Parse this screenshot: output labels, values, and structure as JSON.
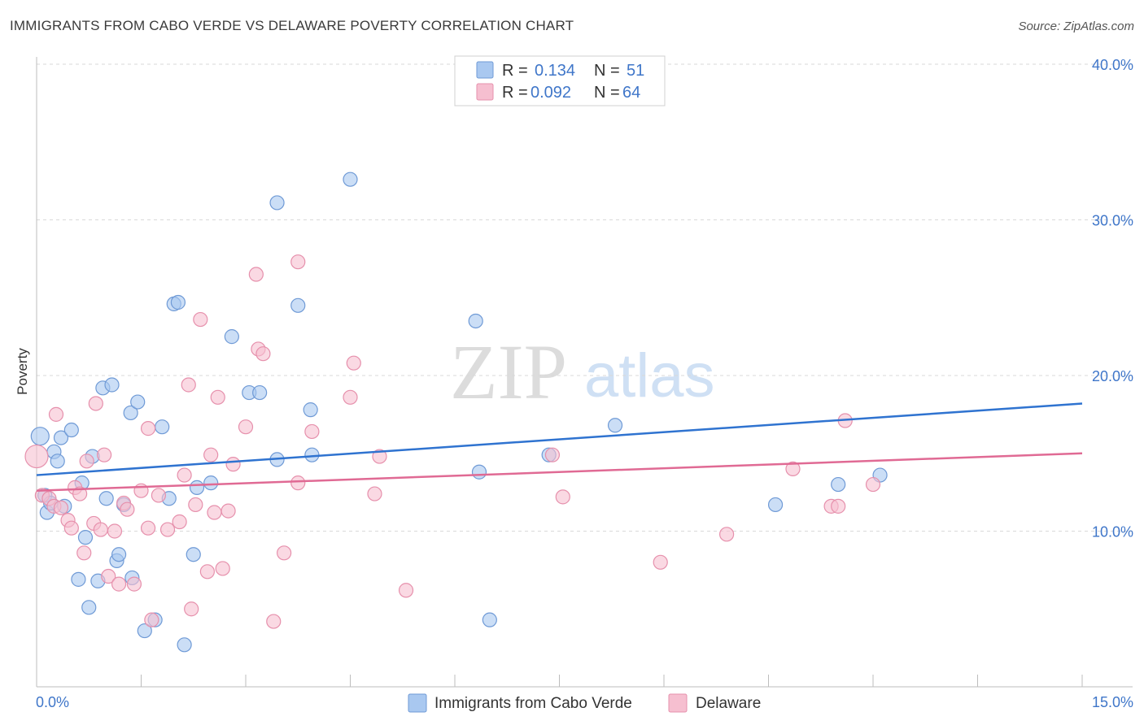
{
  "header": {
    "title": "IMMIGRANTS FROM CABO VERDE VS DELAWARE POVERTY CORRELATION CHART",
    "source": "Source: ZipAtlas.com"
  },
  "watermark": {
    "zip": "ZIP",
    "atlas": "atlas"
  },
  "colors": {
    "blue_fill": "#a9c8f0",
    "blue_stroke": "#6f9ad6",
    "blue_line": "#2f73d0",
    "pink_fill": "#f6bfd0",
    "pink_stroke": "#e690ac",
    "pink_line": "#e06a94",
    "grid": "#d9d9d9",
    "axis_text": "#3f76c9"
  },
  "chart_data": {
    "type": "scatter",
    "title": "IMMIGRANTS FROM CABO VERDE VS DELAWARE POVERTY CORRELATION CHART",
    "xlabel": "",
    "ylabel": "Poverty",
    "xlim": [
      0,
      15
    ],
    "ylim": [
      0,
      40
    ],
    "x_tick_labels": [
      {
        "value": 0,
        "label": "0.0%"
      },
      {
        "value": 15,
        "label": "15.0%"
      }
    ],
    "y_tick_labels": [
      {
        "value": 10,
        "label": "10.0%"
      },
      {
        "value": 20,
        "label": "20.0%"
      },
      {
        "value": 30,
        "label": "30.0%"
      },
      {
        "value": 40,
        "label": "40.0%"
      }
    ],
    "legend": [
      {
        "r_label": "R =",
        "r_value": "0.134",
        "n_label": "N =",
        "n_value": "51"
      },
      {
        "r_label": "R =",
        "r_value": "0.092",
        "n_label": "N =",
        "n_value": "64"
      }
    ],
    "series": [
      {
        "name": "Immigrants from Cabo Verde",
        "color": "#a9c8f0",
        "trend": [
          [
            0,
            13.6
          ],
          [
            15,
            18.2
          ]
        ],
        "points": [
          [
            0.05,
            16.1
          ],
          [
            0.12,
            12.3
          ],
          [
            0.15,
            11.2
          ],
          [
            0.2,
            11.8
          ],
          [
            0.25,
            15.1
          ],
          [
            0.3,
            14.5
          ],
          [
            0.35,
            16.0
          ],
          [
            0.4,
            11.6
          ],
          [
            0.5,
            16.5
          ],
          [
            0.6,
            6.9
          ],
          [
            0.65,
            13.1
          ],
          [
            0.7,
            9.6
          ],
          [
            0.75,
            5.1
          ],
          [
            0.8,
            14.8
          ],
          [
            0.88,
            6.8
          ],
          [
            0.95,
            19.2
          ],
          [
            1.0,
            12.1
          ],
          [
            1.08,
            19.4
          ],
          [
            1.15,
            8.1
          ],
          [
            1.18,
            8.5
          ],
          [
            1.25,
            11.7
          ],
          [
            1.35,
            17.6
          ],
          [
            1.37,
            7.0
          ],
          [
            1.45,
            18.3
          ],
          [
            1.55,
            3.6
          ],
          [
            1.7,
            4.3
          ],
          [
            1.8,
            16.7
          ],
          [
            1.9,
            12.1
          ],
          [
            1.97,
            24.6
          ],
          [
            2.03,
            24.7
          ],
          [
            2.12,
            2.7
          ],
          [
            2.25,
            8.5
          ],
          [
            2.3,
            12.8
          ],
          [
            2.5,
            13.1
          ],
          [
            2.8,
            22.5
          ],
          [
            3.05,
            18.9
          ],
          [
            3.2,
            18.9
          ],
          [
            3.45,
            14.6
          ],
          [
            3.45,
            31.1
          ],
          [
            3.75,
            24.5
          ],
          [
            3.93,
            17.8
          ],
          [
            3.95,
            14.9
          ],
          [
            4.5,
            32.6
          ],
          [
            6.3,
            23.5
          ],
          [
            6.35,
            13.8
          ],
          [
            6.5,
            4.3
          ],
          [
            7.35,
            14.9
          ],
          [
            8.3,
            16.8
          ],
          [
            10.6,
            11.7
          ],
          [
            11.5,
            13.0
          ],
          [
            12.1,
            13.6
          ]
        ]
      },
      {
        "name": "Delaware",
        "color": "#f6bfd0",
        "trend": [
          [
            0,
            12.6
          ],
          [
            15,
            15.0
          ]
        ],
        "points": [
          [
            0.0,
            14.8
          ],
          [
            0.08,
            12.3
          ],
          [
            0.18,
            12.1
          ],
          [
            0.25,
            11.6
          ],
          [
            0.28,
            17.5
          ],
          [
            0.35,
            11.5
          ],
          [
            0.45,
            10.7
          ],
          [
            0.5,
            10.2
          ],
          [
            0.55,
            12.8
          ],
          [
            0.62,
            12.4
          ],
          [
            0.68,
            8.6
          ],
          [
            0.72,
            14.5
          ],
          [
            0.82,
            10.5
          ],
          [
            0.85,
            18.2
          ],
          [
            0.92,
            10.1
          ],
          [
            0.97,
            14.9
          ],
          [
            1.03,
            7.1
          ],
          [
            1.12,
            10.0
          ],
          [
            1.18,
            6.6
          ],
          [
            1.25,
            11.8
          ],
          [
            1.3,
            11.4
          ],
          [
            1.4,
            6.6
          ],
          [
            1.5,
            12.6
          ],
          [
            1.6,
            10.2
          ],
          [
            1.6,
            16.6
          ],
          [
            1.65,
            4.3
          ],
          [
            1.75,
            12.3
          ],
          [
            1.88,
            10.1
          ],
          [
            2.05,
            10.6
          ],
          [
            2.12,
            13.6
          ],
          [
            2.18,
            19.4
          ],
          [
            2.22,
            5.0
          ],
          [
            2.28,
            11.7
          ],
          [
            2.35,
            23.6
          ],
          [
            2.45,
            7.4
          ],
          [
            2.5,
            14.9
          ],
          [
            2.55,
            11.2
          ],
          [
            2.6,
            18.6
          ],
          [
            2.67,
            7.6
          ],
          [
            2.75,
            11.3
          ],
          [
            2.82,
            14.3
          ],
          [
            3.0,
            16.7
          ],
          [
            3.15,
            26.5
          ],
          [
            3.18,
            21.7
          ],
          [
            3.25,
            21.4
          ],
          [
            3.4,
            4.2
          ],
          [
            3.55,
            8.6
          ],
          [
            3.75,
            13.1
          ],
          [
            3.75,
            27.3
          ],
          [
            3.95,
            16.4
          ],
          [
            4.5,
            18.6
          ],
          [
            4.55,
            20.8
          ],
          [
            4.85,
            12.4
          ],
          [
            4.92,
            14.8
          ],
          [
            5.3,
            6.2
          ],
          [
            7.4,
            14.9
          ],
          [
            7.55,
            12.2
          ],
          [
            8.95,
            8.0
          ],
          [
            9.9,
            9.8
          ],
          [
            10.85,
            14.0
          ],
          [
            11.4,
            11.6
          ],
          [
            11.6,
            17.1
          ],
          [
            11.5,
            11.6
          ],
          [
            12.0,
            13.0
          ]
        ]
      }
    ]
  }
}
